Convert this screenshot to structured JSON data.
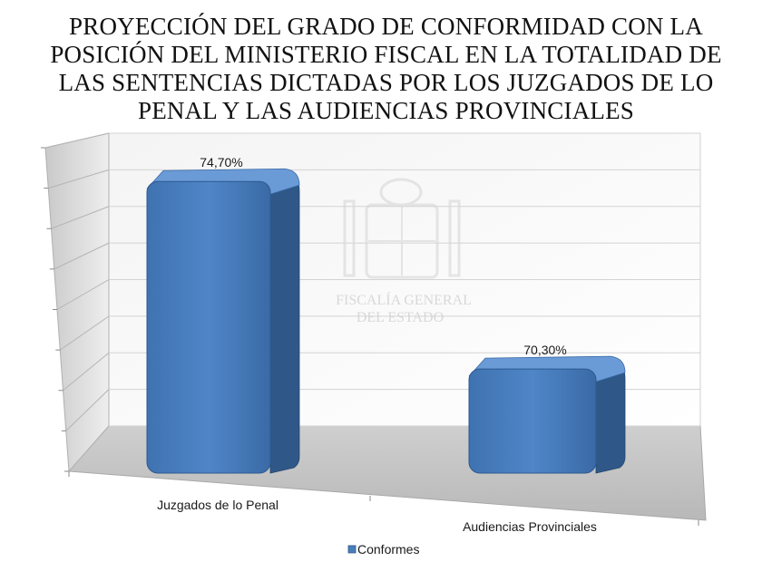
{
  "chart_data": {
    "type": "bar",
    "title_lines": [
      "PROYECCIÓN DEL GRADO DE CONFORMIDAD CON LA",
      "POSICIÓN DEL MINISTERIO FISCAL EN LA TOTALIDAD DE",
      "LAS SENTENCIAS DICTADAS POR LOS JUZGADOS DE LO",
      "PENAL Y LAS AUDIENCIAS PROVINCIALES"
    ],
    "categories": [
      "Juzgados de lo Penal",
      "Audiencias Provinciales"
    ],
    "series": [
      {
        "name": "Conformes",
        "values": [
          74.7,
          70.3
        ],
        "data_labels": [
          "74,70%",
          "70,30%"
        ],
        "color": "#4a7ebb",
        "side_color": "#2f5888",
        "top_color": "#6a9bd6"
      }
    ],
    "ylim": [
      67.9,
      75.3
    ],
    "grid": true,
    "gridline_count": 8,
    "legend_position": "bottom",
    "watermark": [
      "FISCALÍA GENERAL",
      "DEL ESTADO"
    ]
  }
}
